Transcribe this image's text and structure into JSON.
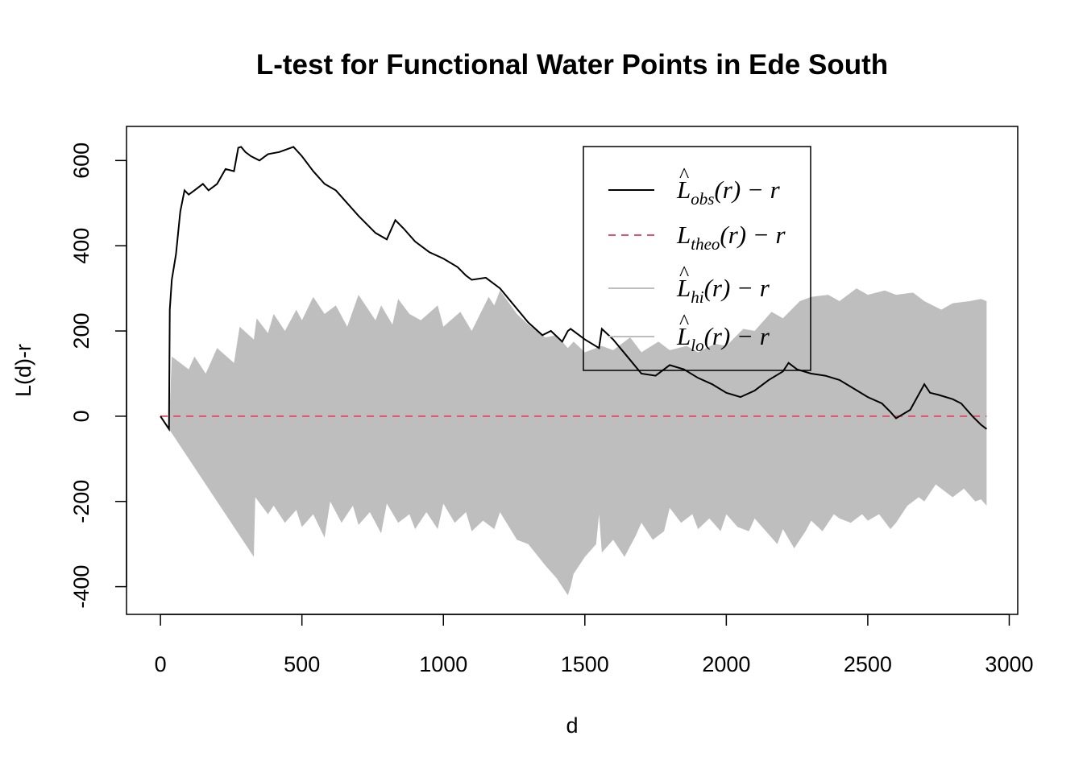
{
  "chart_data": {
    "type": "line",
    "title": "L-test for Functional Water Points in Ede South",
    "xlabel": "d",
    "ylabel": "L(d)-r",
    "xlim": [
      -120,
      3030
    ],
    "ylim": [
      -465,
      680
    ],
    "x_ticks": [
      0,
      500,
      1000,
      1500,
      2000,
      2500,
      3000
    ],
    "y_ticks": [
      -400,
      -200,
      0,
      200,
      400,
      600
    ],
    "grid": false,
    "legend_position": "top-right",
    "legend": [
      {
        "main": "L",
        "hat": "^",
        "sub": "obs",
        "rest": "(r) − r",
        "color": "#000000",
        "dash": "solid"
      },
      {
        "main": "L",
        "hat": "",
        "sub": "theo",
        "rest": "(r) − r",
        "color": "#DF536B",
        "dash": "dashed"
      },
      {
        "main": "L",
        "hat": "^",
        "sub": "hi",
        "rest": "(r) − r",
        "color": "#BEBEBE",
        "dash": "solid"
      },
      {
        "main": "L",
        "hat": "^",
        "sub": "lo",
        "rest": "(r) − r",
        "color": "#BEBEBE",
        "dash": "solid"
      }
    ],
    "series": [
      {
        "name": "obs",
        "color": "#000000",
        "x": [
          0,
          30,
          33,
          40,
          55,
          70,
          85,
          100,
          120,
          150,
          170,
          200,
          230,
          260,
          275,
          285,
          300,
          320,
          350,
          380,
          420,
          470,
          500,
          540,
          580,
          620,
          660,
          700,
          760,
          800,
          830,
          860,
          900,
          950,
          1000,
          1050,
          1080,
          1100,
          1150,
          1200,
          1250,
          1300,
          1350,
          1380,
          1420,
          1440,
          1450,
          1500,
          1550,
          1560,
          1600,
          1650,
          1700,
          1750,
          1800,
          1850,
          1900,
          1950,
          2000,
          2050,
          2100,
          2150,
          2200,
          2220,
          2250,
          2300,
          2350,
          2400,
          2450,
          2500,
          2550,
          2580,
          2600,
          2650,
          2700,
          2720,
          2750,
          2800,
          2830,
          2870,
          2900,
          2920
        ],
        "y": [
          0,
          -30,
          250,
          320,
          380,
          480,
          530,
          520,
          530,
          545,
          530,
          545,
          580,
          575,
          630,
          632,
          620,
          610,
          600,
          615,
          620,
          632,
          610,
          575,
          545,
          530,
          500,
          470,
          430,
          415,
          460,
          440,
          410,
          385,
          370,
          350,
          330,
          320,
          325,
          300,
          260,
          220,
          190,
          200,
          175,
          200,
          205,
          180,
          160,
          205,
          180,
          140,
          100,
          95,
          120,
          110,
          90,
          75,
          55,
          45,
          60,
          85,
          105,
          125,
          110,
          100,
          95,
          85,
          65,
          45,
          30,
          10,
          -5,
          15,
          75,
          55,
          50,
          40,
          30,
          0,
          -20,
          -30
        ]
      },
      {
        "name": "theo",
        "color": "#DF536B",
        "x": [
          0,
          2920
        ],
        "y": [
          0,
          0
        ]
      },
      {
        "name": "hi",
        "color": "#BEBEBE",
        "x": [
          0,
          30,
          40,
          100,
          120,
          160,
          200,
          260,
          280,
          330,
          340,
          380,
          400,
          440,
          480,
          500,
          540,
          580,
          620,
          660,
          700,
          760,
          780,
          820,
          840,
          880,
          920,
          980,
          1000,
          1060,
          1100,
          1160,
          1180,
          1200,
          1260,
          1300,
          1360,
          1400,
          1440,
          1460,
          1500,
          1540,
          1560,
          1600,
          1660,
          1700,
          1760,
          1800,
          1860,
          1900,
          1960,
          2000,
          2060,
          2100,
          2160,
          2200,
          2260,
          2300,
          2360,
          2400,
          2460,
          2500,
          2560,
          2600,
          2660,
          2700,
          2760,
          2800,
          2860,
          2900,
          2920
        ],
        "y": [
          0,
          -30,
          140,
          110,
          140,
          100,
          160,
          125,
          210,
          180,
          230,
          195,
          240,
          200,
          250,
          225,
          280,
          240,
          260,
          210,
          285,
          225,
          260,
          215,
          275,
          240,
          225,
          260,
          210,
          245,
          200,
          280,
          260,
          295,
          240,
          215,
          185,
          190,
          160,
          175,
          150,
          160,
          165,
          155,
          185,
          150,
          175,
          155,
          165,
          150,
          170,
          165,
          205,
          200,
          245,
          230,
          270,
          280,
          285,
          270,
          300,
          285,
          295,
          285,
          290,
          270,
          250,
          265,
          270,
          275,
          270
        ]
      },
      {
        "name": "lo",
        "color": "#BEBEBE",
        "x": [
          0,
          30,
          330,
          335,
          380,
          400,
          440,
          480,
          500,
          540,
          580,
          600,
          640,
          680,
          700,
          740,
          780,
          800,
          840,
          880,
          900,
          940,
          980,
          1000,
          1040,
          1080,
          1100,
          1140,
          1180,
          1200,
          1260,
          1300,
          1360,
          1400,
          1440,
          1450,
          1460,
          1500,
          1540,
          1550,
          1560,
          1600,
          1640,
          1680,
          1700,
          1740,
          1780,
          1800,
          1840,
          1880,
          1900,
          1940,
          1980,
          2000,
          2040,
          2080,
          2100,
          2140,
          2180,
          2200,
          2240,
          2280,
          2300,
          2340,
          2380,
          2400,
          2440,
          2480,
          2500,
          2540,
          2580,
          2600,
          2640,
          2680,
          2700,
          2740,
          2780,
          2800,
          2840,
          2880,
          2900,
          2920
        ],
        "y": [
          0,
          -30,
          -330,
          -190,
          -230,
          -210,
          -250,
          -220,
          -260,
          -230,
          -285,
          -200,
          -250,
          -210,
          -255,
          -225,
          -275,
          -205,
          -250,
          -230,
          -265,
          -225,
          -265,
          -205,
          -250,
          -225,
          -270,
          -245,
          -265,
          -225,
          -290,
          -300,
          -350,
          -380,
          -420,
          -400,
          -370,
          -330,
          -300,
          -230,
          -320,
          -290,
          -330,
          -280,
          -250,
          -290,
          -270,
          -215,
          -250,
          -230,
          -265,
          -240,
          -270,
          -230,
          -260,
          -270,
          -240,
          -270,
          -300,
          -265,
          -310,
          -270,
          -245,
          -270,
          -230,
          -240,
          -250,
          -230,
          -245,
          -230,
          -265,
          -250,
          -210,
          -190,
          -200,
          -160,
          -180,
          -190,
          -170,
          -200,
          -195,
          -210
        ]
      }
    ]
  }
}
